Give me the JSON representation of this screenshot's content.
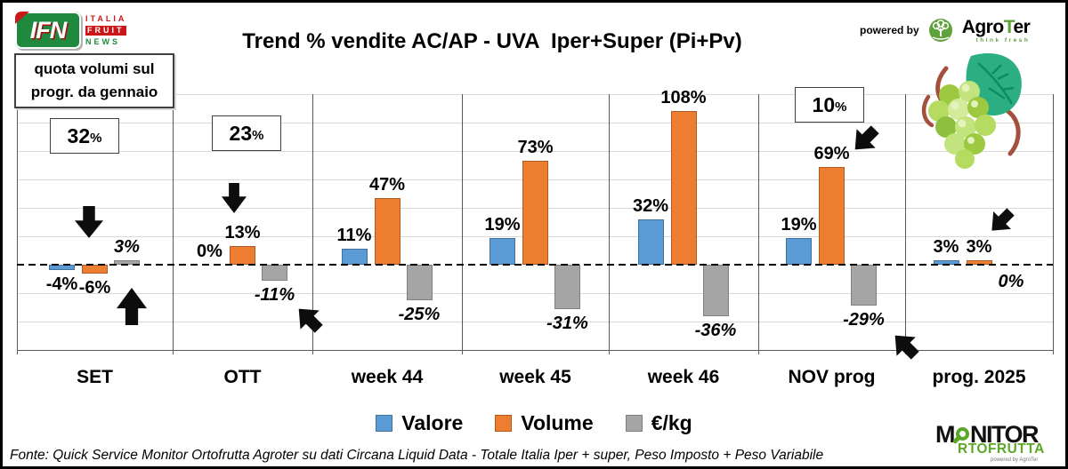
{
  "header": {
    "ifn_logo": {
      "abbr": "IFN",
      "word1": "ITALIA",
      "word2": "FRUIT",
      "word3": "NEWS"
    },
    "title": "Trend % vendite AC/AP - UVA  Iper+Super (Pi+Pv)",
    "powered_by": "powered by",
    "agroter_logo": {
      "name_prefix": "Agro",
      "name_t": "T",
      "name_suffix": "er",
      "tagline": "think fresh"
    }
  },
  "annotation_box": {
    "line1": "quota volumi sul",
    "line2": "progr. da gennaio"
  },
  "chart_data": {
    "type": "bar",
    "title": "Trend % vendite AC/AP - UVA  Iper+Super (Pi+Pv)",
    "categories": [
      "SET",
      "OTT",
      "week 44",
      "week 45",
      "week 46",
      "NOV prog",
      "prog. 2025"
    ],
    "series": [
      {
        "name": "Valore",
        "color": "#5B9BD5",
        "border": "#41719C",
        "values": [
          -4,
          0,
          11,
          19,
          32,
          19,
          3
        ]
      },
      {
        "name": "Volume",
        "color": "#ED7D31",
        "border": "#AE5A21",
        "values": [
          -6,
          13,
          47,
          73,
          108,
          69,
          3
        ]
      },
      {
        "name": "€/kg",
        "color": "#A5A5A5",
        "border": "#7F7F7F",
        "values": [
          3,
          -11,
          -25,
          -31,
          -36,
          -29,
          0
        ]
      }
    ],
    "value_suffix": "%",
    "ylim": [
      -60,
      120
    ],
    "gridline_step": 20,
    "zero_line": "dashed",
    "grid": true,
    "legend_position": "bottom",
    "quota_boxes": [
      {
        "category": "SET",
        "value": "32",
        "unit": "%"
      },
      {
        "category": "OTT",
        "value": "23",
        "unit": "%"
      },
      {
        "category": "NOV prog",
        "value": "10",
        "unit": "%"
      }
    ]
  },
  "annotations": {
    "arrows": [
      {
        "name": "block-arrow-icon",
        "direction": "down",
        "near": "SET bars"
      },
      {
        "name": "block-arrow-icon",
        "direction": "up",
        "near": "SET eur-kg bar"
      },
      {
        "name": "block-arrow-icon",
        "direction": "down",
        "near": "OTT Volume bar"
      },
      {
        "name": "block-arrow-icon",
        "direction": "up-left",
        "near": "OTT eur-kg label"
      },
      {
        "name": "block-arrow-icon",
        "direction": "down-left",
        "near": "NOV prog Volume label"
      },
      {
        "name": "block-arrow-icon",
        "direction": "up-left",
        "near": "NOV prog eur-kg label"
      },
      {
        "name": "block-arrow-icon",
        "direction": "down-left",
        "near": "prog. 2025 bars"
      }
    ]
  },
  "footer": {
    "source": "Fonte: Quick Service Monitor Ortofrutta Agroter su dati Circana Liquid Data - Totale Italia Iper + super, Peso Imposto + Peso Variabile"
  },
  "monitor_logo": {
    "m": "M",
    "nitor": "NITOR",
    "line2": "RTOFRUTTA",
    "powered": "powered by AgroTer"
  }
}
